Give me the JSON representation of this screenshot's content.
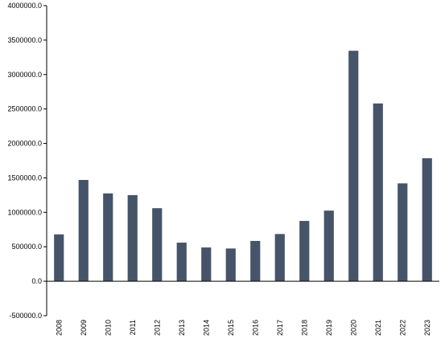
{
  "chart_data": {
    "type": "bar",
    "title": "",
    "xlabel": "",
    "ylabel": "",
    "categories": [
      "2008",
      "2009",
      "2010",
      "2011",
      "2012",
      "2013",
      "2014",
      "2015",
      "2016",
      "2017",
      "2018",
      "2019",
      "2020",
      "2021",
      "2022",
      "2023"
    ],
    "values": [
      680000,
      1470000,
      1275000,
      1250000,
      1060000,
      560000,
      490000,
      475000,
      585000,
      685000,
      875000,
      1025000,
      3345000,
      2580000,
      1420000,
      1785000
    ],
    "ylim": [
      -500000,
      4000000
    ],
    "yticks": [
      {
        "value": 4000000,
        "label": "4000000.0"
      },
      {
        "value": 3500000,
        "label": "3500000.0"
      },
      {
        "value": 3000000,
        "label": "3000000.0"
      },
      {
        "value": 2500000,
        "label": "2500000.0"
      },
      {
        "value": 2000000,
        "label": "2000000.0"
      },
      {
        "value": 1500000,
        "label": "1500000.0"
      },
      {
        "value": 1000000,
        "label": "1000000.0"
      },
      {
        "value": 500000,
        "label": "500000.0"
      },
      {
        "value": 0,
        "label": "0.0"
      },
      {
        "value": -500000,
        "label": "-500000.0"
      }
    ],
    "bar_color": "#46546a",
    "grid": false,
    "legend": "none"
  }
}
